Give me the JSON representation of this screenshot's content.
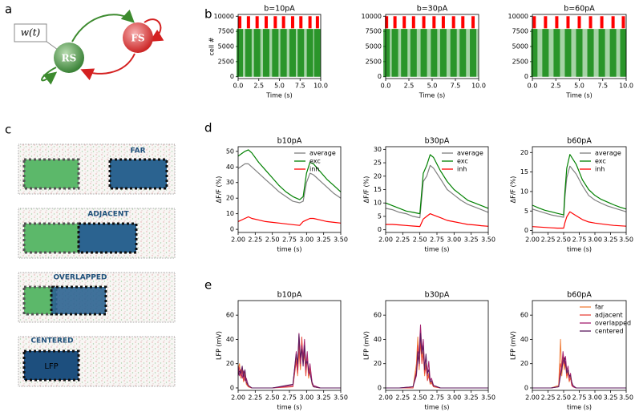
{
  "panel_labels": [
    "a",
    "b",
    "c",
    "d",
    "e"
  ],
  "diagram": {
    "input_label": "w(t)",
    "nodes": [
      {
        "label": "RS"
      },
      {
        "label": "FS"
      }
    ]
  },
  "schematic": {
    "configurations": [
      "FAR",
      "ADJACENT",
      "OVERLAPPED",
      "CENTERED"
    ],
    "lfp_label": "LFP"
  },
  "chart_data": [
    {
      "type": "raster",
      "title": "b=10pA",
      "xlabel": "Time (s)",
      "ylabel": "cell #",
      "xlim": [
        0,
        10
      ],
      "ylim": [
        -300,
        10300
      ],
      "xticks": [
        {
          "value": 0,
          "label": "0.0"
        },
        2.5,
        {
          "value": 5,
          "label": "5.0"
        },
        7.5,
        {
          "value": 10,
          "label": "10.0"
        }
      ],
      "yticks": [
        0,
        2500,
        5000,
        7500,
        10000
      ],
      "series": [
        {
          "color": "#008000",
          "x": [
            0.2,
            1.25,
            2.3,
            3.4,
            4.5,
            5.5,
            6.6,
            7.6,
            8.7,
            9.6
          ],
          "y_range": [
            0,
            7900
          ]
        },
        {
          "color": "#ff0000",
          "x": [
            0.2,
            1.25,
            2.3,
            3.4,
            4.5,
            5.5,
            6.6,
            7.6,
            8.7,
            9.6
          ],
          "y_range": [
            8000,
            10000
          ]
        }
      ]
    },
    {
      "type": "raster",
      "title": "b=30pA",
      "xlabel": "Time (s)",
      "xlim": [
        0,
        10
      ],
      "ylim": [
        -300,
        10300
      ],
      "xticks": [
        {
          "value": 0,
          "label": "0.0"
        },
        2.5,
        {
          "value": 5,
          "label": "5.0"
        },
        7.5,
        {
          "value": 10,
          "label": "10.0"
        }
      ],
      "yticks": [
        0,
        2500,
        5000,
        7500,
        10000
      ],
      "series": [
        {
          "color": "#008000",
          "x": [
            0.1,
            1.0,
            2.0,
            3.0,
            4.1,
            5.2,
            6.2,
            7.3,
            8.3,
            9.4
          ],
          "y_range": [
            0,
            7900
          ]
        },
        {
          "color": "#ff0000",
          "x": [
            0.1,
            1.0,
            2.0,
            3.0,
            4.1,
            5.2,
            6.2,
            7.3,
            8.3,
            9.4
          ],
          "y_range": [
            8000,
            10000
          ]
        }
      ]
    },
    {
      "type": "raster",
      "title": "b=60pA",
      "xlabel": "Time (s)",
      "xlim": [
        0,
        10
      ],
      "ylim": [
        -300,
        10300
      ],
      "xticks": [
        {
          "value": 0,
          "label": "0.0"
        },
        2.5,
        {
          "value": 5,
          "label": "5.0"
        },
        7.5,
        {
          "value": 10,
          "label": "10.0"
        }
      ],
      "yticks": [
        0,
        2500,
        5000,
        7500,
        10000
      ],
      "series": [
        {
          "color": "#008000",
          "x": [
            0.2,
            1.4,
            2.6,
            3.8,
            5.0,
            6.2,
            7.4,
            8.6,
            9.7
          ],
          "y_range": [
            0,
            7900
          ]
        },
        {
          "color": "#ff0000",
          "x": [
            0.2,
            1.4,
            2.6,
            3.8,
            5.0,
            6.2,
            7.4,
            8.6,
            9.7
          ],
          "y_range": [
            8000,
            10000
          ]
        }
      ]
    },
    {
      "type": "line",
      "title": "b10pA",
      "xlabel": "time (s)",
      "ylabel": "ΔF/F (%)",
      "legend": "upper right",
      "xlim": [
        2,
        3.5
      ],
      "ylim": [
        -2,
        53
      ],
      "xticks": [
        {
          "value": 2,
          "label": "2.00"
        },
        2.25,
        {
          "value": 2.5,
          "label": "2.50"
        },
        2.75,
        {
          "value": 3,
          "label": "3.00"
        },
        3.25,
        {
          "value": 3.5,
          "label": "3.50"
        }
      ],
      "yticks": [
        0,
        10,
        20,
        30,
        40,
        50
      ],
      "x": [
        2.0,
        2.1,
        2.15,
        2.2,
        2.3,
        2.4,
        2.5,
        2.6,
        2.7,
        2.8,
        2.9,
        2.95,
        3.0,
        3.05,
        3.1,
        3.2,
        3.3,
        3.4,
        3.5
      ],
      "series": [
        {
          "name": "average",
          "color": "#808080",
          "values": [
            39,
            42,
            42,
            40,
            36,
            32,
            28,
            24,
            21,
            18,
            17,
            18,
            30,
            36,
            35,
            31,
            27,
            23,
            20
          ]
        },
        {
          "name": "exc",
          "color": "#008000",
          "values": [
            47,
            50,
            51,
            49,
            43,
            38,
            33,
            28,
            24,
            21,
            19,
            21,
            36,
            43,
            42,
            37,
            32,
            28,
            24
          ]
        },
        {
          "name": "inh",
          "color": "#ff0000",
          "values": [
            5,
            7,
            8,
            7,
            6,
            5,
            4.5,
            4,
            3.5,
            3,
            2.5,
            5,
            6,
            7,
            7,
            6,
            5,
            4.5,
            4
          ]
        }
      ]
    },
    {
      "type": "line",
      "title": "b30pA",
      "xlabel": "time (s)",
      "ylabel": "ΔF/F (%)",
      "legend": "upper right",
      "xlim": [
        2,
        3.5
      ],
      "ylim": [
        -1,
        31
      ],
      "xticks": [
        {
          "value": 2,
          "label": "2.00"
        },
        2.25,
        {
          "value": 2.5,
          "label": "2.50"
        },
        2.75,
        {
          "value": 3,
          "label": "3.00"
        },
        3.25,
        {
          "value": 3.5,
          "label": "3.50"
        }
      ],
      "yticks": [
        0,
        5,
        10,
        15,
        20,
        25,
        30
      ],
      "x": [
        2.0,
        2.1,
        2.2,
        2.3,
        2.4,
        2.5,
        2.55,
        2.6,
        2.65,
        2.7,
        2.8,
        2.9,
        3.0,
        3.1,
        3.2,
        3.3,
        3.4,
        3.5
      ],
      "series": [
        {
          "name": "average",
          "color": "#808080",
          "values": [
            8,
            7.5,
            6.5,
            6,
            5,
            4.5,
            18,
            20,
            24,
            23,
            19,
            15,
            13,
            11,
            9.5,
            8.5,
            7.5,
            6.5
          ]
        },
        {
          "name": "exc",
          "color": "#008000",
          "values": [
            10,
            9,
            8,
            7,
            6.5,
            6,
            21,
            24,
            28,
            27,
            22,
            18,
            15,
            13,
            11,
            10,
            9,
            8
          ]
        },
        {
          "name": "inh",
          "color": "#ff0000",
          "values": [
            2,
            2,
            1.8,
            1.6,
            1.4,
            1.2,
            4,
            5,
            6,
            5.5,
            4.5,
            3.5,
            3,
            2.5,
            2,
            1.8,
            1.5,
            1.3
          ]
        }
      ]
    },
    {
      "type": "line",
      "title": "b60pA",
      "xlabel": "time (s)",
      "ylabel": "ΔF/F (%)",
      "legend": "upper right",
      "xlim": [
        2,
        3.5
      ],
      "ylim": [
        -0.5,
        21.5
      ],
      "xticks": [
        {
          "value": 2,
          "label": "2.00"
        },
        2.25,
        {
          "value": 2.5,
          "label": "2.50"
        },
        2.75,
        {
          "value": 3,
          "label": "3.00"
        },
        3.25,
        {
          "value": 3.5,
          "label": "3.50"
        }
      ],
      "yticks": [
        0,
        5,
        10,
        15,
        20
      ],
      "x": [
        2.0,
        2.1,
        2.2,
        2.3,
        2.4,
        2.5,
        2.52,
        2.55,
        2.6,
        2.7,
        2.8,
        2.9,
        3.0,
        3.1,
        3.2,
        3.3,
        3.4,
        3.5
      ],
      "series": [
        {
          "name": "average",
          "color": "#808080",
          "values": [
            5.5,
            5,
            4.5,
            4,
            3.7,
            3.4,
            8.5,
            13.5,
            16.5,
            14.5,
            11.5,
            9,
            7.8,
            7,
            6.3,
            5.8,
            5.3,
            4.8
          ]
        },
        {
          "name": "exc",
          "color": "#008000",
          "values": [
            6.5,
            5.8,
            5.2,
            4.8,
            4.4,
            4,
            10,
            16,
            19.5,
            17,
            13,
            10.5,
            9,
            8,
            7.3,
            6.6,
            6,
            5.5
          ]
        },
        {
          "name": "inh",
          "color": "#ff0000",
          "values": [
            1,
            0.9,
            0.8,
            0.7,
            0.6,
            0.6,
            2,
            3.5,
            4.8,
            3.8,
            2.8,
            2.2,
            1.9,
            1.7,
            1.5,
            1.3,
            1.2,
            1.1
          ]
        }
      ]
    },
    {
      "type": "line",
      "title": "b10pA",
      "xlabel": "time (s)",
      "ylabel": "LFP (mV)",
      "xlim": [
        2,
        3.5
      ],
      "ylim": [
        -2,
        72
      ],
      "xticks": [
        {
          "value": 2,
          "label": "2.00"
        },
        2.25,
        {
          "value": 2.5,
          "label": "2.50"
        },
        2.75,
        {
          "value": 3,
          "label": "3.00"
        },
        3.25,
        {
          "value": 3.5,
          "label": "3.50"
        }
      ],
      "yticks": [
        0,
        20,
        40,
        60
      ],
      "x": [
        2.0,
        2.02,
        2.04,
        2.06,
        2.08,
        2.1,
        2.12,
        2.15,
        2.2,
        2.5,
        2.8,
        2.85,
        2.87,
        2.89,
        2.91,
        2.93,
        2.95,
        2.97,
        2.99,
        3.01,
        3.03,
        3.05,
        3.08,
        3.1,
        3.2,
        3.5
      ],
      "series": [
        {
          "color": "#f07f3c",
          "values": [
            15,
            20,
            8,
            16,
            5,
            12,
            3,
            1,
            0,
            0,
            2,
            25,
            10,
            30,
            15,
            35,
            20,
            28,
            12,
            25,
            8,
            15,
            3,
            1,
            0,
            0
          ]
        },
        {
          "color": "#e8453c",
          "values": [
            12,
            17,
            10,
            14,
            6,
            10,
            4,
            1,
            0,
            0,
            1,
            22,
            12,
            38,
            18,
            42,
            22,
            30,
            10,
            28,
            10,
            18,
            4,
            1,
            0,
            0
          ]
        },
        {
          "color": "#a3216f",
          "values": [
            18,
            10,
            15,
            8,
            14,
            6,
            8,
            2,
            0,
            0,
            2,
            30,
            15,
            45,
            20,
            35,
            25,
            40,
            15,
            30,
            12,
            20,
            5,
            2,
            0,
            0
          ]
        },
        {
          "color": "#5b1a5e",
          "values": [
            10,
            14,
            12,
            18,
            9,
            15,
            5,
            2,
            0,
            0,
            3,
            28,
            20,
            44,
            25,
            32,
            18,
            35,
            20,
            22,
            15,
            12,
            4,
            1,
            0,
            0
          ]
        }
      ]
    },
    {
      "type": "line",
      "title": "b30pA",
      "xlabel": "time (s)",
      "ylabel": "LFP (mV)",
      "xlim": [
        2,
        3.5
      ],
      "ylim": [
        -2,
        72
      ],
      "xticks": [
        {
          "value": 2,
          "label": "2.00"
        },
        2.25,
        {
          "value": 2.5,
          "label": "2.50"
        },
        2.75,
        {
          "value": 3,
          "label": "3.00"
        },
        3.25,
        {
          "value": 3.5,
          "label": "3.50"
        }
      ],
      "yticks": [
        0,
        20,
        40,
        60
      ],
      "x": [
        2.0,
        2.2,
        2.4,
        2.45,
        2.47,
        2.49,
        2.51,
        2.53,
        2.55,
        2.57,
        2.59,
        2.61,
        2.63,
        2.65,
        2.67,
        2.7,
        2.8,
        3.0,
        3.5
      ],
      "series": [
        {
          "color": "#f07f3c",
          "values": [
            0,
            0,
            0,
            20,
            42,
            15,
            38,
            25,
            30,
            10,
            20,
            8,
            12,
            3,
            5,
            1,
            0,
            0,
            0
          ]
        },
        {
          "color": "#e8453c",
          "values": [
            0,
            0,
            0,
            15,
            35,
            18,
            40,
            20,
            28,
            12,
            18,
            6,
            10,
            4,
            4,
            1,
            0,
            0,
            0
          ]
        },
        {
          "color": "#a3216f",
          "values": [
            0,
            0,
            1,
            10,
            25,
            30,
            52,
            30,
            40,
            18,
            25,
            10,
            22,
            6,
            8,
            2,
            0,
            0,
            0
          ]
        },
        {
          "color": "#5b1a5e",
          "values": [
            0,
            0,
            1,
            12,
            30,
            20,
            45,
            28,
            35,
            15,
            28,
            12,
            15,
            5,
            6,
            2,
            0,
            0,
            0
          ]
        }
      ]
    },
    {
      "type": "line",
      "title": "b60pA",
      "xlabel": "time (s)",
      "ylabel": "LFP (mV)",
      "legend": "upper right",
      "xlim": [
        2,
        3.5
      ],
      "ylim": [
        -2,
        72
      ],
      "xticks": [
        {
          "value": 2,
          "label": "2.00"
        },
        2.25,
        {
          "value": 2.5,
          "label": "2.50"
        },
        2.75,
        {
          "value": 3,
          "label": "3.00"
        },
        3.25,
        {
          "value": 3.5,
          "label": "3.50"
        }
      ],
      "yticks": [
        0,
        20,
        40,
        60
      ],
      "x": [
        2.0,
        2.3,
        2.42,
        2.45,
        2.47,
        2.49,
        2.51,
        2.53,
        2.55,
        2.57,
        2.59,
        2.61,
        2.63,
        2.65,
        2.7,
        3.0,
        3.5
      ],
      "series": [
        {
          "name": "far",
          "color": "#f07f3c",
          "values": [
            0,
            0,
            2,
            40,
            10,
            25,
            15,
            20,
            8,
            15,
            5,
            10,
            3,
            1,
            0,
            0,
            0
          ]
        },
        {
          "name": "adjacent",
          "color": "#e8453c",
          "values": [
            0,
            0,
            1,
            20,
            15,
            28,
            18,
            22,
            10,
            12,
            6,
            8,
            2,
            1,
            0,
            0,
            0
          ]
        },
        {
          "name": "overlapped",
          "color": "#a3216f",
          "values": [
            0,
            0,
            1,
            12,
            18,
            30,
            20,
            26,
            14,
            18,
            8,
            12,
            4,
            1,
            0,
            0,
            0
          ]
        },
        {
          "name": "centered",
          "color": "#5b1a5e",
          "values": [
            0,
            0,
            1,
            10,
            15,
            22,
            25,
            20,
            12,
            15,
            10,
            10,
            5,
            2,
            0,
            0,
            0
          ]
        }
      ]
    }
  ]
}
